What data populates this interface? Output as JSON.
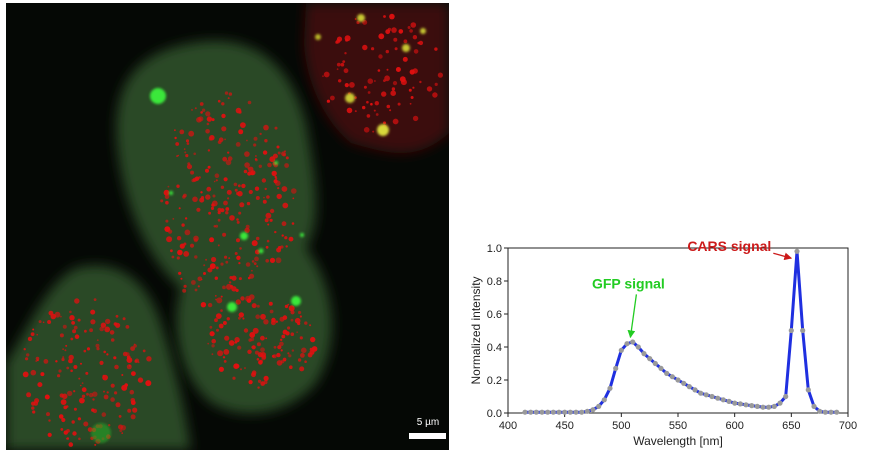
{
  "micrograph": {
    "scale_label": "5 µm",
    "channel_colors": {
      "gfp": "#2ec22e",
      "cars": "#e01010"
    }
  },
  "chart_data": {
    "type": "line",
    "title": "",
    "xlabel": "Wavelength [nm]",
    "ylabel": "Normalized intensity",
    "xlim": [
      400,
      700
    ],
    "ylim": [
      0.0,
      1.0
    ],
    "xticks": [
      400,
      450,
      500,
      550,
      600,
      650,
      700
    ],
    "yticks": [
      0.0,
      0.2,
      0.4,
      0.6,
      0.8,
      1.0
    ],
    "xtick_labels": [
      "400",
      "450",
      "500",
      "550",
      "600",
      "650",
      "700"
    ],
    "ytick_labels": [
      "0.0",
      "0.2",
      "0.4",
      "0.6",
      "0.8",
      "1.0"
    ],
    "line_color": "#1f2fe0",
    "marker_color": "#9a9a9a",
    "series": [
      {
        "x": [
          415,
          420,
          425,
          430,
          435,
          440,
          445,
          450,
          455,
          460,
          465,
          470,
          475,
          480,
          485,
          490,
          495,
          500,
          505,
          510,
          515,
          520,
          525,
          530,
          535,
          540,
          545,
          550,
          555,
          560,
          565,
          570,
          575,
          580,
          585,
          590,
          595,
          600,
          605,
          610,
          615,
          620,
          625,
          630,
          635,
          640,
          645,
          650,
          655,
          660,
          665,
          670,
          675,
          680,
          685,
          690
        ],
        "y": [
          0.005,
          0.005,
          0.005,
          0.005,
          0.005,
          0.005,
          0.005,
          0.005,
          0.005,
          0.005,
          0.005,
          0.01,
          0.02,
          0.04,
          0.08,
          0.15,
          0.27,
          0.38,
          0.42,
          0.43,
          0.4,
          0.36,
          0.33,
          0.3,
          0.27,
          0.24,
          0.22,
          0.2,
          0.18,
          0.16,
          0.14,
          0.12,
          0.11,
          0.1,
          0.09,
          0.08,
          0.07,
          0.06,
          0.055,
          0.05,
          0.045,
          0.04,
          0.035,
          0.035,
          0.04,
          0.06,
          0.1,
          0.5,
          0.98,
          0.5,
          0.14,
          0.04,
          0.01,
          0.005,
          0.005,
          0.005
        ]
      }
    ],
    "annotations": [
      {
        "text": "GFP signal",
        "color": "#22cc22",
        "target": [
          508,
          0.44
        ]
      },
      {
        "text": "CARS signal",
        "color": "#cc1a1a",
        "target": [
          650,
          0.92
        ]
      }
    ]
  }
}
